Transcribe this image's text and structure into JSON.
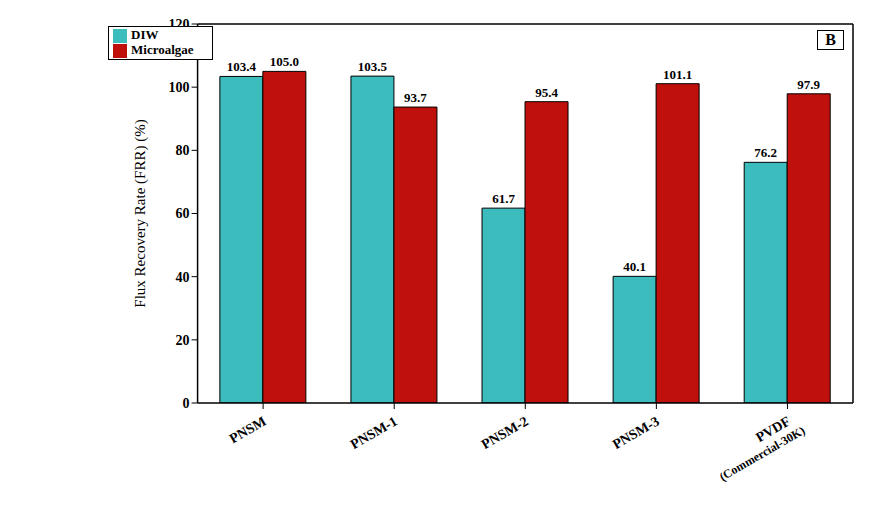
{
  "chart_data": {
    "type": "bar",
    "annotation": "B",
    "y_label": "Flux Recovery Rate (FRR) (%)",
    "categories": [
      "PNSM",
      "PNSM-1",
      "PNSM-2",
      "PNSM-3",
      "PVDF (Commercial-30K)"
    ],
    "series": [
      {
        "name": "DIW",
        "color": "#3cbcbc",
        "values": [
          103.4,
          103.5,
          61.7,
          40.1,
          76.2
        ],
        "value_labels": [
          "103.4",
          "103.5",
          "61.7",
          "40.1",
          "76.2"
        ]
      },
      {
        "name": "Microalgae",
        "color": "#c0100c",
        "values": [
          105.0,
          93.7,
          95.4,
          101.1,
          97.9
        ],
        "value_labels": [
          "105.0",
          "93.7",
          "95.4",
          "101.1",
          "97.9"
        ]
      }
    ],
    "ylim": [
      0,
      120
    ],
    "yticks": [
      0,
      20,
      40,
      60,
      80,
      100,
      120
    ],
    "grid": false,
    "legend": "upper left",
    "data_labels": true
  }
}
